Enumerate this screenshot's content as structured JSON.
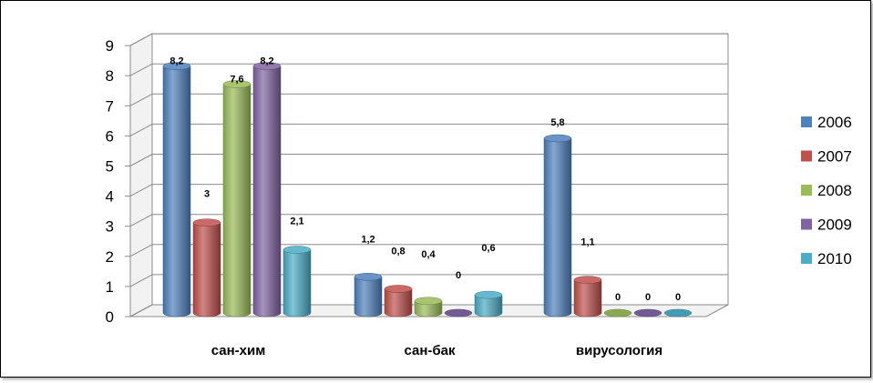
{
  "chart_data": {
    "type": "bar",
    "categories": [
      "сан-хим",
      "сан-бак",
      "вирусология"
    ],
    "series": [
      {
        "name": "2006",
        "color": "#4F81BD",
        "values": [
          8.2,
          1.2,
          5.8
        ],
        "labels": [
          "8,2",
          "1,2",
          "5,8"
        ]
      },
      {
        "name": "2007",
        "color": "#C0504D",
        "values": [
          3,
          0.8,
          1.1
        ],
        "labels": [
          "3",
          "0,8",
          "1,1"
        ]
      },
      {
        "name": "2008",
        "color": "#9BBB59",
        "values": [
          7.6,
          0.4,
          0
        ],
        "labels": [
          "7,6",
          "0,4",
          "0"
        ]
      },
      {
        "name": "2009",
        "color": "#8064A2",
        "values": [
          8.2,
          0,
          0
        ],
        "labels": [
          "8,2",
          "0",
          "0"
        ]
      },
      {
        "name": "2010",
        "color": "#4BACC6",
        "values": [
          2.1,
          0.6,
          0
        ],
        "labels": [
          "2,1",
          "0,6",
          "0"
        ]
      }
    ],
    "y_ticks": [
      "0",
      "1",
      "2",
      "3",
      "4",
      "5",
      "6",
      "7",
      "8",
      "9"
    ],
    "ylim": [
      0,
      9
    ],
    "grid": true,
    "legend_position": "right",
    "bar_shape": "3d-cylinder",
    "title": "",
    "xlabel": "",
    "ylabel": ""
  }
}
